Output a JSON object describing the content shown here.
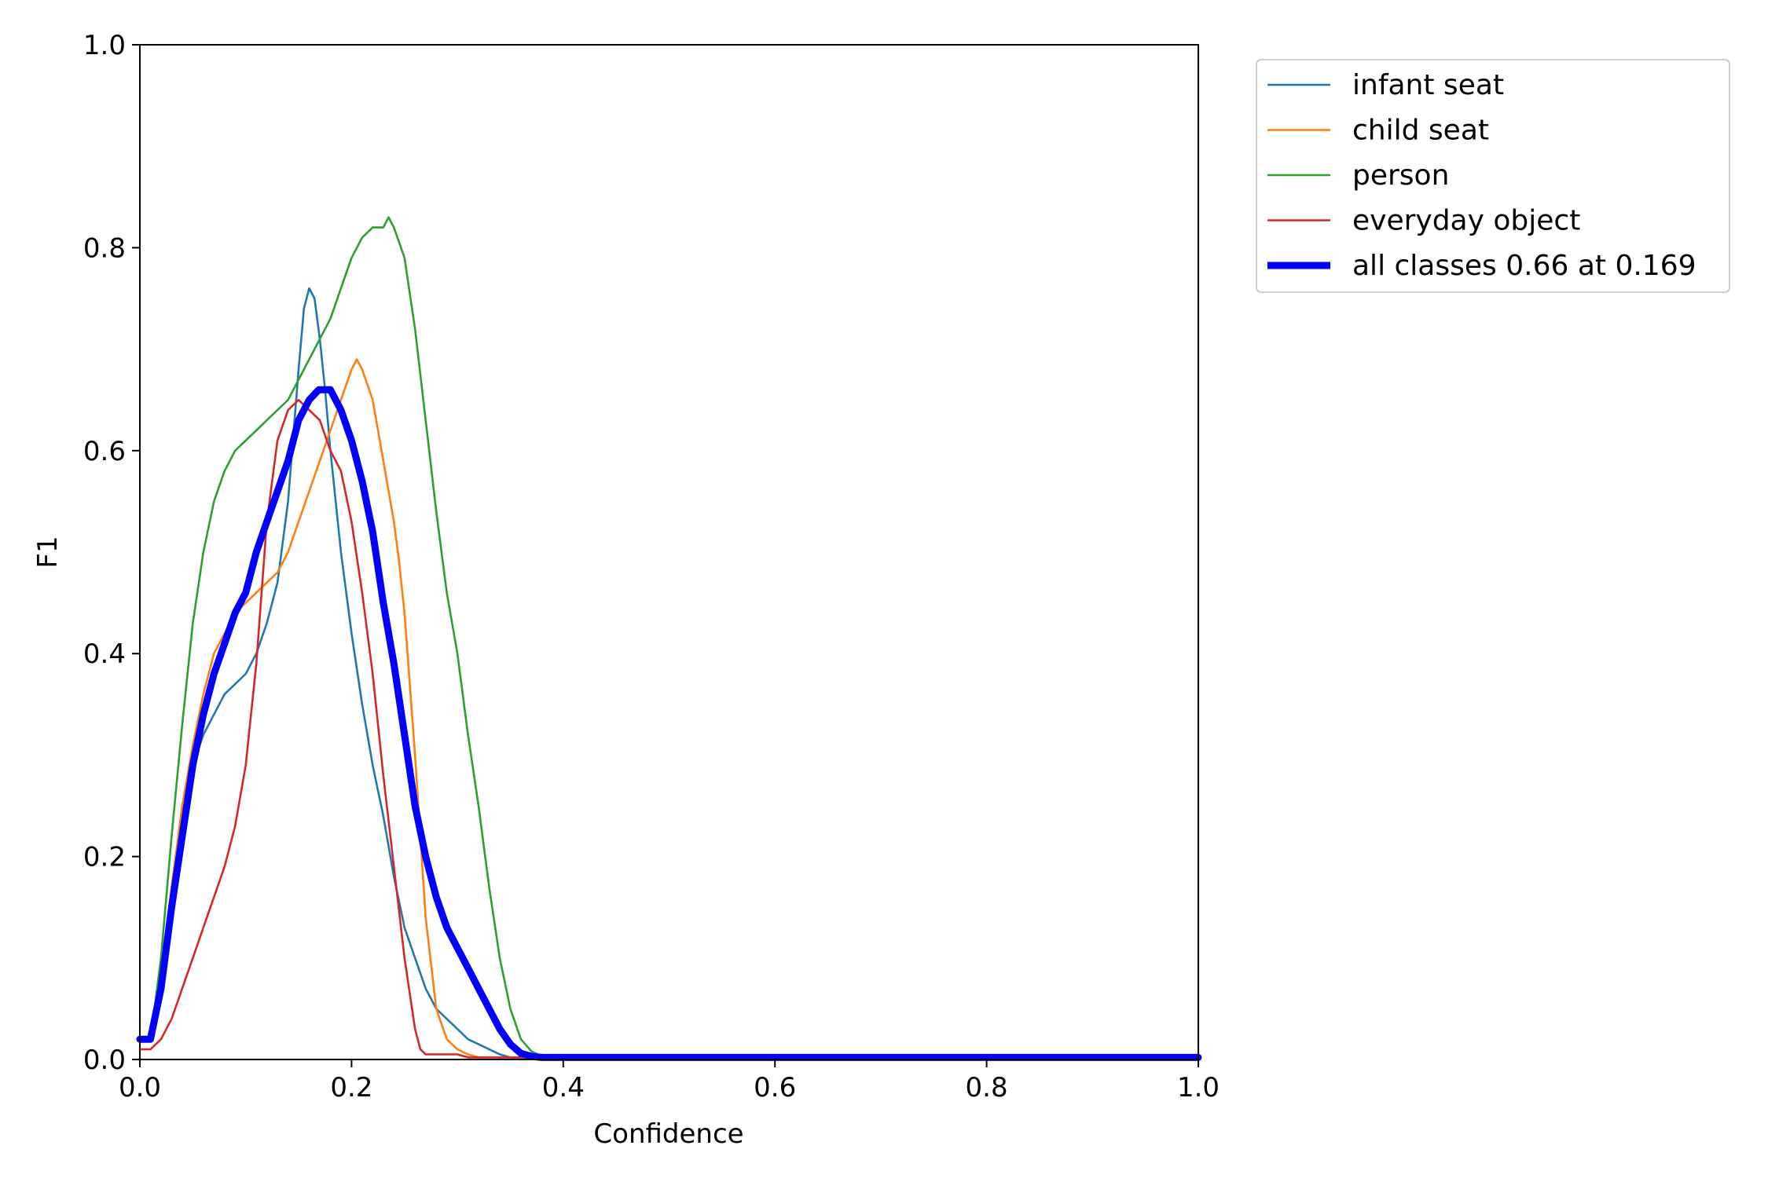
{
  "chart_data": {
    "type": "line",
    "xlabel": "Confidence",
    "ylabel": "F1",
    "xlim": [
      0,
      1
    ],
    "ylim": [
      0,
      1
    ],
    "x_ticks": [
      0.0,
      0.2,
      0.4,
      0.6,
      0.8,
      1.0
    ],
    "y_ticks": [
      0.0,
      0.2,
      0.4,
      0.6,
      0.8,
      1.0
    ],
    "x_tick_labels": [
      "0.0",
      "0.2",
      "0.4",
      "0.6",
      "0.8",
      "1.0"
    ],
    "y_tick_labels": [
      "0.0",
      "0.2",
      "0.4",
      "0.6",
      "0.8",
      "1.0"
    ],
    "grid": false,
    "legend_position": "outside upper right",
    "series": [
      {
        "name": "infant seat",
        "color": "#1f77b4",
        "emphasis": "thin",
        "x": [
          0.0,
          0.01,
          0.02,
          0.03,
          0.04,
          0.05,
          0.06,
          0.07,
          0.08,
          0.09,
          0.1,
          0.11,
          0.12,
          0.13,
          0.14,
          0.15,
          0.155,
          0.16,
          0.165,
          0.17,
          0.175,
          0.18,
          0.19,
          0.2,
          0.21,
          0.22,
          0.23,
          0.24,
          0.25,
          0.26,
          0.27,
          0.28,
          0.29,
          0.3,
          0.31,
          0.32,
          0.33,
          0.34,
          0.35,
          0.36,
          0.4,
          0.5,
          0.6,
          0.7,
          0.8,
          0.9,
          1.0
        ],
        "y": [
          0.02,
          0.02,
          0.07,
          0.16,
          0.24,
          0.29,
          0.32,
          0.34,
          0.36,
          0.37,
          0.38,
          0.4,
          0.43,
          0.47,
          0.55,
          0.68,
          0.74,
          0.76,
          0.75,
          0.71,
          0.66,
          0.6,
          0.5,
          0.42,
          0.35,
          0.29,
          0.24,
          0.18,
          0.13,
          0.1,
          0.07,
          0.05,
          0.04,
          0.03,
          0.02,
          0.015,
          0.01,
          0.005,
          0.002,
          0.002,
          0.002,
          0.002,
          0.002,
          0.002,
          0.002,
          0.002,
          0.002
        ]
      },
      {
        "name": "child seat",
        "color": "#ff7f0e",
        "emphasis": "thin",
        "x": [
          0.0,
          0.01,
          0.02,
          0.03,
          0.04,
          0.05,
          0.06,
          0.07,
          0.08,
          0.09,
          0.1,
          0.11,
          0.12,
          0.13,
          0.14,
          0.15,
          0.16,
          0.17,
          0.18,
          0.19,
          0.2,
          0.205,
          0.21,
          0.22,
          0.23,
          0.24,
          0.245,
          0.25,
          0.26,
          0.27,
          0.28,
          0.29,
          0.3,
          0.31,
          0.32,
          0.4,
          0.5,
          0.6,
          0.7,
          0.8,
          0.9,
          1.0
        ],
        "y": [
          0.02,
          0.02,
          0.08,
          0.17,
          0.25,
          0.31,
          0.36,
          0.4,
          0.42,
          0.44,
          0.45,
          0.46,
          0.47,
          0.48,
          0.5,
          0.53,
          0.56,
          0.59,
          0.62,
          0.65,
          0.68,
          0.69,
          0.68,
          0.65,
          0.59,
          0.53,
          0.49,
          0.44,
          0.3,
          0.14,
          0.05,
          0.02,
          0.01,
          0.005,
          0.002,
          0.002,
          0.002,
          0.002,
          0.002,
          0.002,
          0.002,
          0.002
        ]
      },
      {
        "name": "person",
        "color": "#2ca02c",
        "emphasis": "thin",
        "x": [
          0.0,
          0.01,
          0.02,
          0.03,
          0.04,
          0.05,
          0.06,
          0.07,
          0.08,
          0.09,
          0.1,
          0.11,
          0.12,
          0.13,
          0.14,
          0.15,
          0.16,
          0.17,
          0.18,
          0.19,
          0.2,
          0.21,
          0.22,
          0.23,
          0.235,
          0.24,
          0.25,
          0.26,
          0.27,
          0.28,
          0.29,
          0.3,
          0.31,
          0.32,
          0.33,
          0.34,
          0.35,
          0.36,
          0.37,
          0.38,
          0.4,
          0.5,
          0.6,
          0.7,
          0.8,
          0.9,
          1.0
        ],
        "y": [
          0.02,
          0.02,
          0.1,
          0.22,
          0.33,
          0.43,
          0.5,
          0.55,
          0.58,
          0.6,
          0.61,
          0.62,
          0.63,
          0.64,
          0.65,
          0.67,
          0.69,
          0.71,
          0.73,
          0.76,
          0.79,
          0.81,
          0.82,
          0.82,
          0.83,
          0.82,
          0.79,
          0.72,
          0.63,
          0.54,
          0.46,
          0.4,
          0.32,
          0.25,
          0.17,
          0.1,
          0.05,
          0.02,
          0.008,
          0.003,
          0.002,
          0.002,
          0.002,
          0.002,
          0.002,
          0.002,
          0.002
        ]
      },
      {
        "name": "everyday object",
        "color": "#d62728",
        "emphasis": "thin",
        "x": [
          0.0,
          0.01,
          0.02,
          0.03,
          0.04,
          0.05,
          0.06,
          0.07,
          0.08,
          0.09,
          0.1,
          0.11,
          0.115,
          0.12,
          0.13,
          0.14,
          0.15,
          0.16,
          0.17,
          0.18,
          0.19,
          0.2,
          0.21,
          0.22,
          0.23,
          0.24,
          0.25,
          0.26,
          0.265,
          0.27,
          0.3,
          0.31,
          0.4,
          0.5,
          0.6,
          0.7,
          0.8,
          0.9,
          1.0
        ],
        "y": [
          0.01,
          0.01,
          0.02,
          0.04,
          0.07,
          0.1,
          0.13,
          0.16,
          0.19,
          0.23,
          0.29,
          0.39,
          0.46,
          0.53,
          0.61,
          0.64,
          0.65,
          0.64,
          0.63,
          0.6,
          0.58,
          0.53,
          0.46,
          0.38,
          0.28,
          0.19,
          0.1,
          0.03,
          0.01,
          0.005,
          0.005,
          0.002,
          0.002,
          0.002,
          0.002,
          0.002,
          0.002,
          0.002,
          0.002
        ]
      },
      {
        "name": "all classes 0.66 at 0.169",
        "color": "#0000ff",
        "emphasis": "thick",
        "x": [
          0.0,
          0.01,
          0.02,
          0.03,
          0.04,
          0.05,
          0.06,
          0.07,
          0.08,
          0.09,
          0.1,
          0.11,
          0.12,
          0.13,
          0.14,
          0.15,
          0.16,
          0.169,
          0.18,
          0.19,
          0.2,
          0.21,
          0.22,
          0.23,
          0.24,
          0.25,
          0.26,
          0.27,
          0.28,
          0.29,
          0.3,
          0.31,
          0.32,
          0.33,
          0.34,
          0.35,
          0.36,
          0.37,
          0.38,
          0.4,
          0.5,
          0.6,
          0.7,
          0.8,
          0.9,
          1.0
        ],
        "y": [
          0.02,
          0.02,
          0.07,
          0.15,
          0.22,
          0.29,
          0.34,
          0.38,
          0.41,
          0.44,
          0.46,
          0.5,
          0.53,
          0.56,
          0.59,
          0.63,
          0.65,
          0.66,
          0.66,
          0.64,
          0.61,
          0.57,
          0.52,
          0.45,
          0.39,
          0.32,
          0.25,
          0.2,
          0.16,
          0.13,
          0.11,
          0.09,
          0.07,
          0.05,
          0.03,
          0.015,
          0.006,
          0.003,
          0.002,
          0.002,
          0.002,
          0.002,
          0.002,
          0.002,
          0.002,
          0.002
        ]
      }
    ]
  }
}
